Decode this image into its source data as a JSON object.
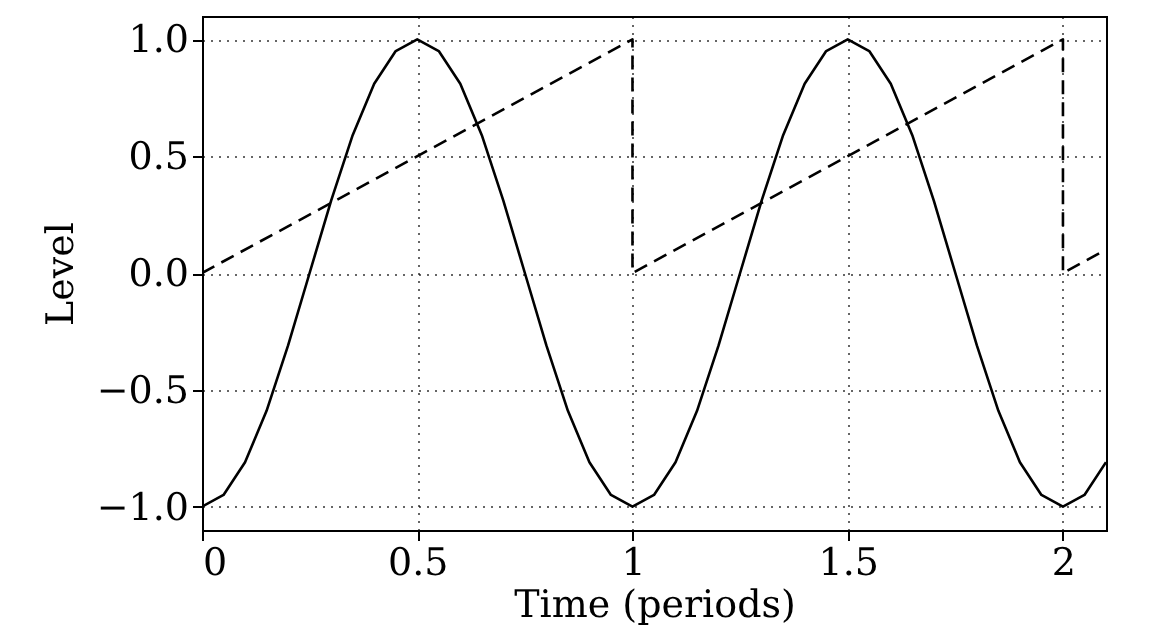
{
  "chart_data": {
    "type": "line",
    "xlabel": "Time (periods)",
    "ylabel": "Level",
    "xlim": [
      0,
      2.1
    ],
    "ylim": [
      -1.1,
      1.1
    ],
    "xticks": [
      0,
      0.5,
      1,
      1.5,
      2
    ],
    "yticks": [
      {
        "value": -1,
        "label": "−1.0"
      },
      {
        "value": -0.5,
        "label": "−0.5"
      },
      {
        "value": 0,
        "label": "0.0"
      },
      {
        "value": 0.5,
        "label": "0.5"
      },
      {
        "value": 1,
        "label": "1.0"
      }
    ],
    "grid": true,
    "marker": "none",
    "series": [
      {
        "color": "#000000",
        "line_style": "solid",
        "x": [
          0,
          0.05,
          0.1,
          0.15,
          0.2,
          0.25,
          0.3,
          0.35,
          0.4,
          0.45,
          0.5,
          0.55,
          0.6,
          0.65,
          0.7,
          0.75,
          0.8,
          0.85,
          0.9,
          0.95,
          1,
          1.05,
          1.1,
          1.15,
          1.2,
          1.25,
          1.3,
          1.35,
          1.4,
          1.45,
          1.5,
          1.55,
          1.6,
          1.65,
          1.7,
          1.75,
          1.8,
          1.85,
          1.9,
          1.95,
          2,
          2.05,
          2.1
        ],
        "values": [
          -1,
          -0.95,
          -0.81,
          -0.59,
          -0.31,
          0,
          0.31,
          0.59,
          0.81,
          0.95,
          1,
          0.95,
          0.81,
          0.59,
          0.31,
          0,
          -0.31,
          -0.59,
          -0.81,
          -0.95,
          -1,
          -0.95,
          -0.81,
          -0.59,
          -0.31,
          0,
          0.31,
          0.59,
          0.81,
          0.95,
          1,
          0.95,
          0.81,
          0.59,
          0.31,
          0,
          -0.31,
          -0.59,
          -0.81,
          -0.95,
          -1,
          -0.95,
          -0.81
        ]
      },
      {
        "color": "#000000",
        "line_style": "dashed",
        "x": [
          0,
          1,
          1,
          2,
          2,
          2.1
        ],
        "values": [
          0,
          1,
          0,
          1,
          0,
          0.1
        ]
      }
    ]
  }
}
